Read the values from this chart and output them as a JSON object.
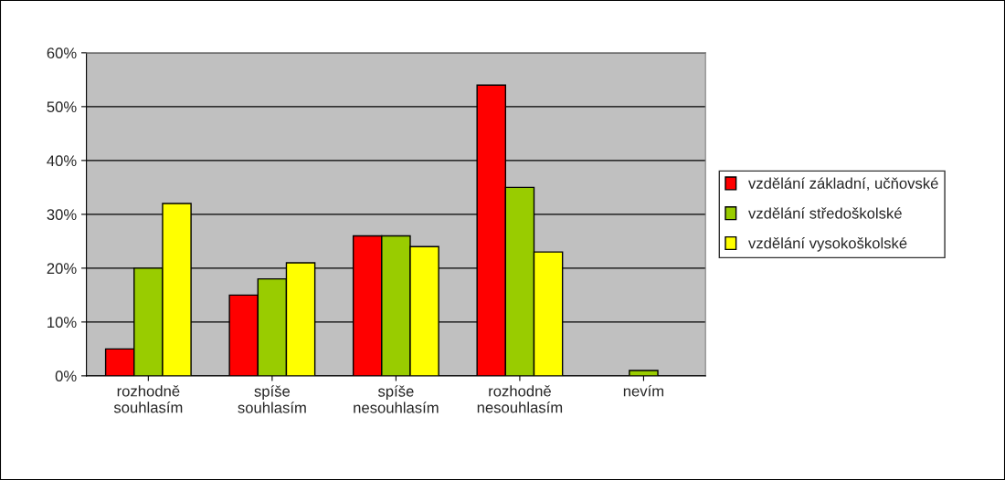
{
  "chart_data": {
    "type": "bar",
    "categories": [
      "rozhodně\nsouhlasím",
      "spíše\nsouhlasím",
      "spíše\nnesouhlasím",
      "rozhodně\nnesouhlasím",
      "nevím"
    ],
    "series": [
      {
        "name": "vzdělání základní, učňovské",
        "color": "#ff0000",
        "values": [
          5,
          15,
          26,
          54,
          null
        ]
      },
      {
        "name": "vzdělání středoškolské",
        "color": "#99cc00",
        "values": [
          20,
          18,
          26,
          35,
          1
        ]
      },
      {
        "name": "vzdělání vysokoškolské",
        "color": "#ffff00",
        "values": [
          32,
          21,
          24,
          23,
          null
        ]
      }
    ],
    "ylim": [
      0,
      60
    ],
    "yticks": [
      {
        "value": 0,
        "label": "0%"
      },
      {
        "value": 10,
        "label": "10%"
      },
      {
        "value": 20,
        "label": "20%"
      },
      {
        "value": 30,
        "label": "30%"
      },
      {
        "value": 40,
        "label": "40%"
      },
      {
        "value": 50,
        "label": "50%"
      },
      {
        "value": 60,
        "label": "60%"
      }
    ],
    "grid": "y",
    "legend": "right"
  }
}
